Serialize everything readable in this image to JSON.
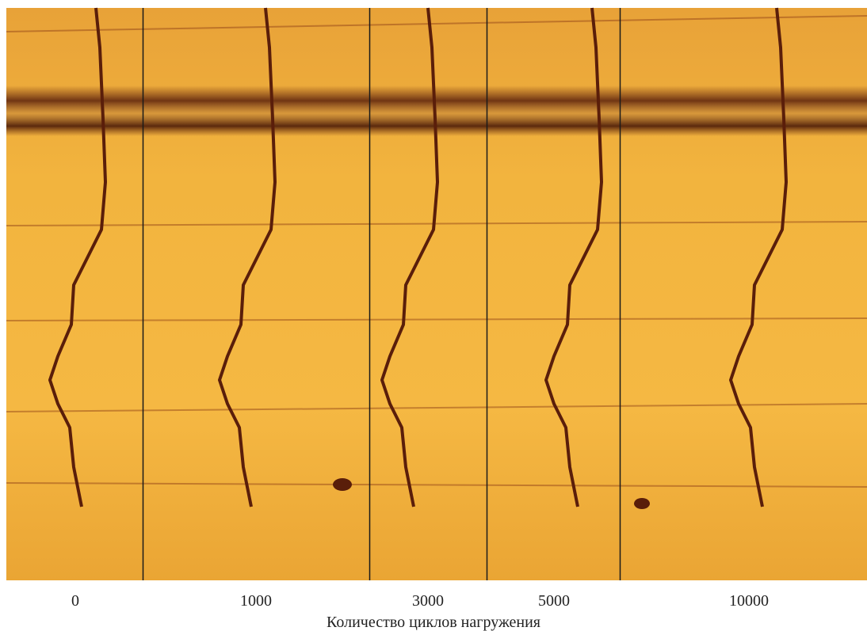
{
  "panels": [
    {
      "label": "0"
    },
    {
      "label": "1000"
    },
    {
      "label": "3000"
    },
    {
      "label": "5000"
    },
    {
      "label": "10000"
    }
  ],
  "caption": "Количество циклов нагружения"
}
